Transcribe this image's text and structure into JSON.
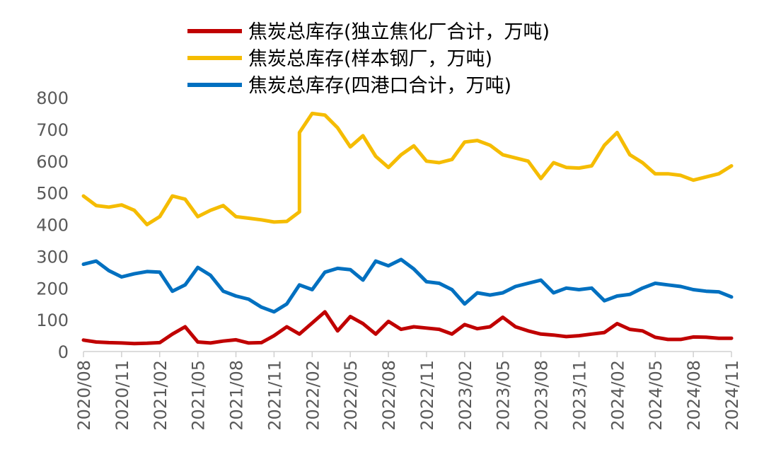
{
  "chart_data": {
    "type": "line",
    "title": "",
    "xlabel": "",
    "ylabel": "",
    "ylim": [
      0,
      800
    ],
    "yticks": [
      "0",
      "100",
      "200",
      "300",
      "400",
      "500",
      "600",
      "700",
      "800"
    ],
    "x_ticks": [
      "2020/08",
      "2020/11",
      "2021/02",
      "2021/05",
      "2021/08",
      "2021/11",
      "2022/02",
      "2022/05",
      "2022/08",
      "2022/11",
      "2023/02",
      "2023/05",
      "2023/08",
      "2023/11",
      "2024/02",
      "2024/05",
      "2024/08",
      "2024/11"
    ],
    "grid": false,
    "legend_position": "top",
    "series": [
      {
        "name": "焦炭总库存(独立焦化厂合计，万吨)",
        "color": "#C00000",
        "points": [
          [
            "2020/08",
            36
          ],
          [
            "2020/09",
            30
          ],
          [
            "2020/10",
            28
          ],
          [
            "2020/11",
            27
          ],
          [
            "2020/12",
            25
          ],
          [
            "2021/01",
            26
          ],
          [
            "2021/02",
            28
          ],
          [
            "2021/03",
            55
          ],
          [
            "2021/04",
            78
          ],
          [
            "2021/05",
            30
          ],
          [
            "2021/06",
            27
          ],
          [
            "2021/07",
            33
          ],
          [
            "2021/08",
            37
          ],
          [
            "2021/09",
            27
          ],
          [
            "2021/10",
            28
          ],
          [
            "2021/11",
            50
          ],
          [
            "2021/12",
            78
          ],
          [
            "2022/01",
            55
          ],
          [
            "2022/02",
            90
          ],
          [
            "2022/03",
            125
          ],
          [
            "2022/04",
            65
          ],
          [
            "2022/05",
            110
          ],
          [
            "2022/06",
            88
          ],
          [
            "2022/07",
            55
          ],
          [
            "2022/08",
            95
          ],
          [
            "2022/09",
            70
          ],
          [
            "2022/10",
            78
          ],
          [
            "2022/11",
            74
          ],
          [
            "2022/12",
            70
          ],
          [
            "2023/01",
            55
          ],
          [
            "2023/02",
            85
          ],
          [
            "2023/03",
            72
          ],
          [
            "2023/04",
            78
          ],
          [
            "2023/05",
            108
          ],
          [
            "2023/06",
            78
          ],
          [
            "2023/07",
            65
          ],
          [
            "2023/08",
            55
          ],
          [
            "2023/09",
            52
          ],
          [
            "2023/10",
            47
          ],
          [
            "2023/11",
            50
          ],
          [
            "2023/12",
            55
          ],
          [
            "2024/01",
            60
          ],
          [
            "2024/02",
            88
          ],
          [
            "2024/03",
            70
          ],
          [
            "2024/04",
            65
          ],
          [
            "2024/05",
            45
          ],
          [
            "2024/06",
            38
          ],
          [
            "2024/07",
            38
          ],
          [
            "2024/08",
            46
          ],
          [
            "2024/09",
            45
          ],
          [
            "2024/10",
            42
          ],
          [
            "2024/11",
            42
          ]
        ]
      },
      {
        "name": "焦炭总库存(样本钢厂，万吨)",
        "color": "#F5BC00",
        "points": [
          [
            "2020/08",
            490
          ],
          [
            "2020/09",
            460
          ],
          [
            "2020/10",
            455
          ],
          [
            "2020/11",
            462
          ],
          [
            "2020/12",
            445
          ],
          [
            "2021/01",
            400
          ],
          [
            "2021/02",
            425
          ],
          [
            "2021/03",
            490
          ],
          [
            "2021/04",
            480
          ],
          [
            "2021/05",
            425
          ],
          [
            "2021/06",
            445
          ],
          [
            "2021/07",
            460
          ],
          [
            "2021/08",
            425
          ],
          [
            "2021/09",
            420
          ],
          [
            "2021/10",
            415
          ],
          [
            "2021/11",
            408
          ],
          [
            "2021/12",
            410
          ],
          [
            "2022/01",
            440
          ],
          [
            "2022/01",
            690
          ],
          [
            "2022/02",
            750
          ],
          [
            "2022/03",
            745
          ],
          [
            "2022/04",
            705
          ],
          [
            "2022/05",
            645
          ],
          [
            "2022/06",
            680
          ],
          [
            "2022/07",
            615
          ],
          [
            "2022/08",
            580
          ],
          [
            "2022/09",
            620
          ],
          [
            "2022/10",
            648
          ],
          [
            "2022/11",
            600
          ],
          [
            "2022/12",
            595
          ],
          [
            "2023/01",
            605
          ],
          [
            "2023/02",
            660
          ],
          [
            "2023/03",
            665
          ],
          [
            "2023/04",
            650
          ],
          [
            "2023/05",
            620
          ],
          [
            "2023/06",
            610
          ],
          [
            "2023/07",
            600
          ],
          [
            "2023/08",
            545
          ],
          [
            "2023/09",
            595
          ],
          [
            "2023/10",
            580
          ],
          [
            "2023/11",
            578
          ],
          [
            "2023/12",
            585
          ],
          [
            "2024/01",
            650
          ],
          [
            "2024/02",
            690
          ],
          [
            "2024/03",
            620
          ],
          [
            "2024/04",
            595
          ],
          [
            "2024/05",
            560
          ],
          [
            "2024/06",
            560
          ],
          [
            "2024/07",
            555
          ],
          [
            "2024/08",
            540
          ],
          [
            "2024/09",
            550
          ],
          [
            "2024/10",
            560
          ],
          [
            "2024/11",
            585
          ]
        ]
      },
      {
        "name": "焦炭总库存(四港口合计，万吨)",
        "color": "#0070C0",
        "points": [
          [
            "2020/08",
            275
          ],
          [
            "2020/09",
            285
          ],
          [
            "2020/10",
            255
          ],
          [
            "2020/11",
            235
          ],
          [
            "2020/12",
            245
          ],
          [
            "2021/01",
            252
          ],
          [
            "2021/02",
            250
          ],
          [
            "2021/03",
            190
          ],
          [
            "2021/04",
            210
          ],
          [
            "2021/05",
            265
          ],
          [
            "2021/06",
            240
          ],
          [
            "2021/07",
            190
          ],
          [
            "2021/08",
            175
          ],
          [
            "2021/09",
            165
          ],
          [
            "2021/10",
            140
          ],
          [
            "2021/11",
            125
          ],
          [
            "2021/12",
            150
          ],
          [
            "2022/01",
            210
          ],
          [
            "2022/02",
            195
          ],
          [
            "2022/03",
            250
          ],
          [
            "2022/04",
            262
          ],
          [
            "2022/05",
            258
          ],
          [
            "2022/06",
            225
          ],
          [
            "2022/07",
            285
          ],
          [
            "2022/08",
            270
          ],
          [
            "2022/09",
            290
          ],
          [
            "2022/10",
            260
          ],
          [
            "2022/11",
            220
          ],
          [
            "2022/12",
            215
          ],
          [
            "2023/01",
            195
          ],
          [
            "2023/02",
            150
          ],
          [
            "2023/03",
            185
          ],
          [
            "2023/04",
            178
          ],
          [
            "2023/05",
            185
          ],
          [
            "2023/06",
            205
          ],
          [
            "2023/07",
            215
          ],
          [
            "2023/08",
            225
          ],
          [
            "2023/09",
            185
          ],
          [
            "2023/10",
            200
          ],
          [
            "2023/11",
            195
          ],
          [
            "2023/12",
            200
          ],
          [
            "2024/01",
            160
          ],
          [
            "2024/02",
            175
          ],
          [
            "2024/03",
            180
          ],
          [
            "2024/04",
            200
          ],
          [
            "2024/05",
            215
          ],
          [
            "2024/06",
            210
          ],
          [
            "2024/07",
            205
          ],
          [
            "2024/08",
            195
          ],
          [
            "2024/09",
            190
          ],
          [
            "2024/10",
            188
          ],
          [
            "2024/11",
            172
          ]
        ]
      }
    ]
  }
}
